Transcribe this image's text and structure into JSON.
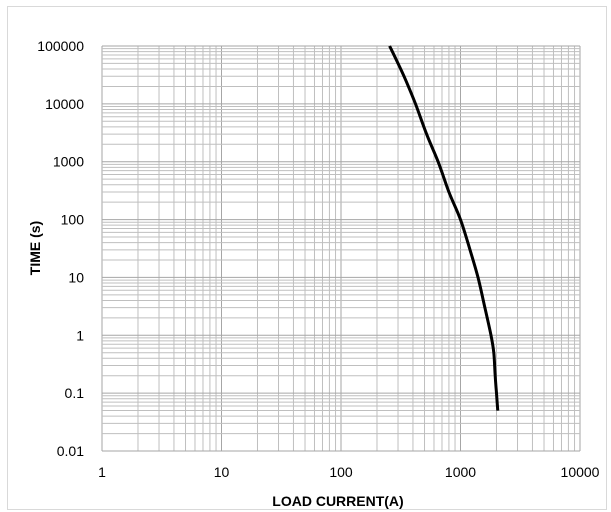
{
  "chart_data": {
    "type": "line",
    "title": "",
    "xlabel": "LOAD CURRENT(A)",
    "ylabel": "TIME (s)",
    "xscale": "log",
    "yscale": "log",
    "xlim": [
      1,
      10000
    ],
    "ylim": [
      0.01,
      100000
    ],
    "grid": true,
    "legend": "none",
    "x_tick_labels": [
      "1",
      "10",
      "100",
      "1000",
      "10000"
    ],
    "y_tick_labels": [
      "0.01",
      "0.1",
      "1",
      "10",
      "100",
      "1000",
      "10000",
      "100000"
    ],
    "series": [
      {
        "color": "#000000",
        "points": [
          {
            "x": 255,
            "y": 100000
          },
          {
            "x": 300,
            "y": 50000
          },
          {
            "x": 350,
            "y": 25000
          },
          {
            "x": 420,
            "y": 10000
          },
          {
            "x": 520,
            "y": 3000
          },
          {
            "x": 650,
            "y": 1000
          },
          {
            "x": 800,
            "y": 300
          },
          {
            "x": 1000,
            "y": 100
          },
          {
            "x": 1200,
            "y": 30
          },
          {
            "x": 1400,
            "y": 10
          },
          {
            "x": 1600,
            "y": 3
          },
          {
            "x": 1800,
            "y": 1
          },
          {
            "x": 1900,
            "y": 0.5
          },
          {
            "x": 1950,
            "y": 0.2
          },
          {
            "x": 2000,
            "y": 0.1
          },
          {
            "x": 2050,
            "y": 0.05
          }
        ]
      }
    ]
  },
  "colors": {
    "grid": "#bfbfbf",
    "major_grid": "#a6a6a6",
    "curve": "#000000"
  }
}
